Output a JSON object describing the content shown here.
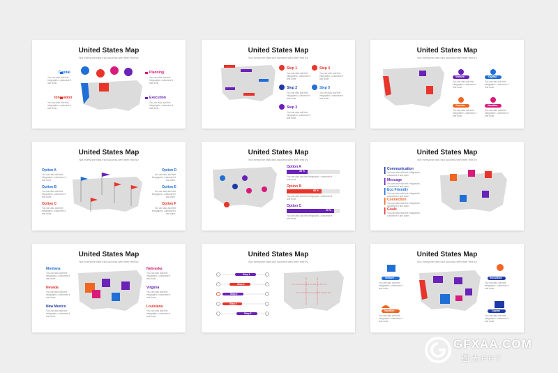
{
  "slides": [
    {
      "title": "United States Map",
      "subtitle": "Not everyone falls into success with their first try",
      "labels": [
        "Capital",
        "Planning",
        "Innovation",
        "Execution"
      ]
    },
    {
      "title": "United States Map",
      "subtitle": "Not everyone falls into success with their first try",
      "labels": [
        "Step 1",
        "Step 2",
        "Step 3",
        "Step 4",
        "Step 5",
        "Step 6"
      ]
    },
    {
      "title": "United States Map",
      "subtitle": "Not everyone falls into success with their first try",
      "labels": [
        "Venture",
        "Capital",
        "Tourism",
        "Vacation"
      ]
    },
    {
      "title": "United States Map",
      "subtitle": "Not everyone falls into success with their first try",
      "labels": [
        "Option A",
        "Option B",
        "Option C",
        "Option D",
        "Option E",
        "Option F"
      ]
    },
    {
      "title": "United States Map",
      "subtitle": "Not everyone falls into success with their first try",
      "labels": [
        "Option A",
        "Option B",
        "Option C"
      ],
      "bars": [
        "35 %",
        "65 %",
        "90 %"
      ]
    },
    {
      "title": "United States Map",
      "subtitle": "Not everyone falls into success with their first try",
      "labels": [
        "Communication",
        "Message",
        "Eco Friendly",
        "Connection",
        "Goals"
      ]
    },
    {
      "title": "United States Map",
      "subtitle": "Not everyone falls into success with their first try",
      "labels": [
        "Montana",
        "Nevada",
        "New Mexico",
        "Nebraska",
        "Virginia",
        "Louisiana"
      ]
    },
    {
      "title": "United States Map",
      "subtitle": "Not everyone falls into success with their first try",
      "labels": [
        "Step 1",
        "Step 2",
        "Step 3",
        "Step 4",
        "Step 5"
      ]
    },
    {
      "title": "United States Map",
      "subtitle": "Not everyone falls into success with their first try",
      "labels": [
        "Venture",
        "Innovation",
        "Vacation",
        "Capital"
      ]
    }
  ],
  "body_text": "You can also add text infographic, customize it and done.",
  "colors": {
    "blue": "#1f6fd6",
    "red": "#e8342b",
    "purple": "#6a22b8",
    "magenta": "#d81b7a",
    "orange": "#f26522",
    "gray": "#dcdcdc"
  },
  "watermark": {
    "name": "GFXAA.COM",
    "sub": "图大PPT"
  }
}
